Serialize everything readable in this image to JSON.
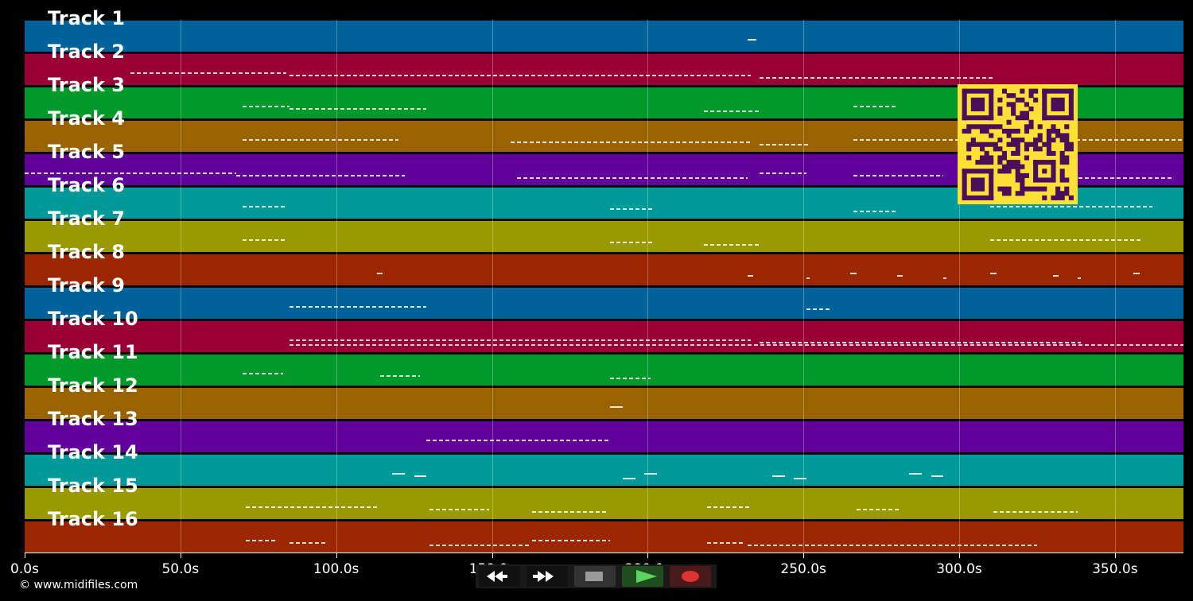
{
  "tracks": [
    {
      "label": "Track 1",
      "color": "#00629a"
    },
    {
      "label": "Track 2",
      "color": "#9b0035"
    },
    {
      "label": "Track 3",
      "color": "#009a2a"
    },
    {
      "label": "Track 4",
      "color": "#9b6200"
    },
    {
      "label": "Track 5",
      "color": "#62009b"
    },
    {
      "label": "Track 6",
      "color": "#009a9a"
    },
    {
      "label": "Track 7",
      "color": "#9a9a00"
    },
    {
      "label": "Track 8",
      "color": "#9b2600"
    },
    {
      "label": "Track 9",
      "color": "#00629a"
    },
    {
      "label": "Track 10",
      "color": "#9b0035"
    },
    {
      "label": "Track 11",
      "color": "#009a2a"
    },
    {
      "label": "Track 12",
      "color": "#9b6200"
    },
    {
      "label": "Track 13",
      "color": "#62009b"
    },
    {
      "label": "Track 14",
      "color": "#009a9a"
    },
    {
      "label": "Track 15",
      "color": "#9a9a00"
    },
    {
      "label": "Track 16",
      "color": "#9b2600"
    }
  ],
  "timeline": {
    "max_seconds": 372,
    "ticks": [
      {
        "label": "0.0s",
        "t": 0
      },
      {
        "label": "50.0s",
        "t": 50
      },
      {
        "label": "100.0s",
        "t": 100
      },
      {
        "label": "150.0s",
        "t": 150
      },
      {
        "label": "200.0s",
        "t": 200
      },
      {
        "label": "250.0s",
        "t": 250
      },
      {
        "label": "300.0s",
        "t": 300
      },
      {
        "label": "350.0s",
        "t": 350
      }
    ]
  },
  "notes": [
    {
      "track": 1,
      "ranges": [
        [
          232,
          235
        ]
      ]
    },
    {
      "track": 2,
      "ranges": [
        [
          34,
          84
        ],
        [
          85,
          233
        ],
        [
          236,
          311
        ]
      ]
    },
    {
      "track": 3,
      "ranges": [
        [
          70,
          85
        ],
        [
          85,
          129
        ],
        [
          218,
          236
        ],
        [
          266,
          280
        ]
      ]
    },
    {
      "track": 4,
      "ranges": [
        [
          70,
          120
        ],
        [
          156,
          233
        ],
        [
          236,
          252
        ],
        [
          266,
          372
        ]
      ]
    },
    {
      "track": 5,
      "ranges": [
        [
          0,
          68
        ],
        [
          68,
          122
        ],
        [
          158,
          232
        ],
        [
          236,
          251
        ],
        [
          266,
          295
        ],
        [
          330,
          369
        ]
      ]
    },
    {
      "track": 6,
      "ranges": [
        [
          70,
          84
        ],
        [
          188,
          202
        ],
        [
          266,
          280
        ],
        [
          310,
          362
        ]
      ]
    },
    {
      "track": 7,
      "ranges": [
        [
          70,
          84
        ],
        [
          188,
          202
        ],
        [
          218,
          236
        ],
        [
          310,
          359
        ]
      ]
    },
    {
      "track": 8,
      "ranges": [
        [
          113,
          115
        ],
        [
          232,
          234
        ],
        [
          251,
          252
        ],
        [
          265,
          267
        ],
        [
          280,
          282
        ],
        [
          295,
          296
        ],
        [
          310,
          312
        ],
        [
          330,
          332
        ],
        [
          338,
          339
        ],
        [
          356,
          358
        ]
      ]
    },
    {
      "track": 9,
      "ranges": [
        [
          85,
          129
        ],
        [
          251,
          259
        ]
      ]
    },
    {
      "track": 10,
      "ranges": [
        [
          85,
          233
        ],
        [
          236,
          339
        ],
        [
          85,
          372
        ]
      ]
    },
    {
      "track": 11,
      "ranges": [
        [
          70,
          83
        ],
        [
          114,
          127
        ],
        [
          188,
          201
        ]
      ]
    },
    {
      "track": 12,
      "ranges": [
        [
          188,
          192
        ]
      ]
    },
    {
      "track": 13,
      "ranges": [
        [
          129,
          188
        ]
      ]
    },
    {
      "track": 14,
      "ranges": [
        [
          118,
          122
        ],
        [
          125,
          129
        ],
        [
          192,
          196
        ],
        [
          199,
          203
        ],
        [
          240,
          244
        ],
        [
          247,
          251
        ],
        [
          284,
          288
        ],
        [
          291,
          295
        ]
      ]
    },
    {
      "track": 15,
      "ranges": [
        [
          71,
          114
        ],
        [
          130,
          149
        ],
        [
          163,
          187
        ],
        [
          219,
          233
        ],
        [
          267,
          281
        ],
        [
          311,
          338
        ]
      ]
    },
    {
      "track": 16,
      "ranges": [
        [
          71,
          81
        ],
        [
          85,
          97
        ],
        [
          130,
          162
        ],
        [
          163,
          188
        ],
        [
          219,
          231
        ],
        [
          232,
          325
        ]
      ]
    }
  ],
  "footer": {
    "copyright": "© www.midifiles.com"
  },
  "controls": {
    "rewind": "rewind-icon",
    "fast_forward": "fast-forward-icon",
    "stop": "stop-icon",
    "play": "play-icon",
    "record": "record-icon"
  },
  "qr": {
    "color": "#ffe036",
    "module_color": "#4b0f5a"
  }
}
